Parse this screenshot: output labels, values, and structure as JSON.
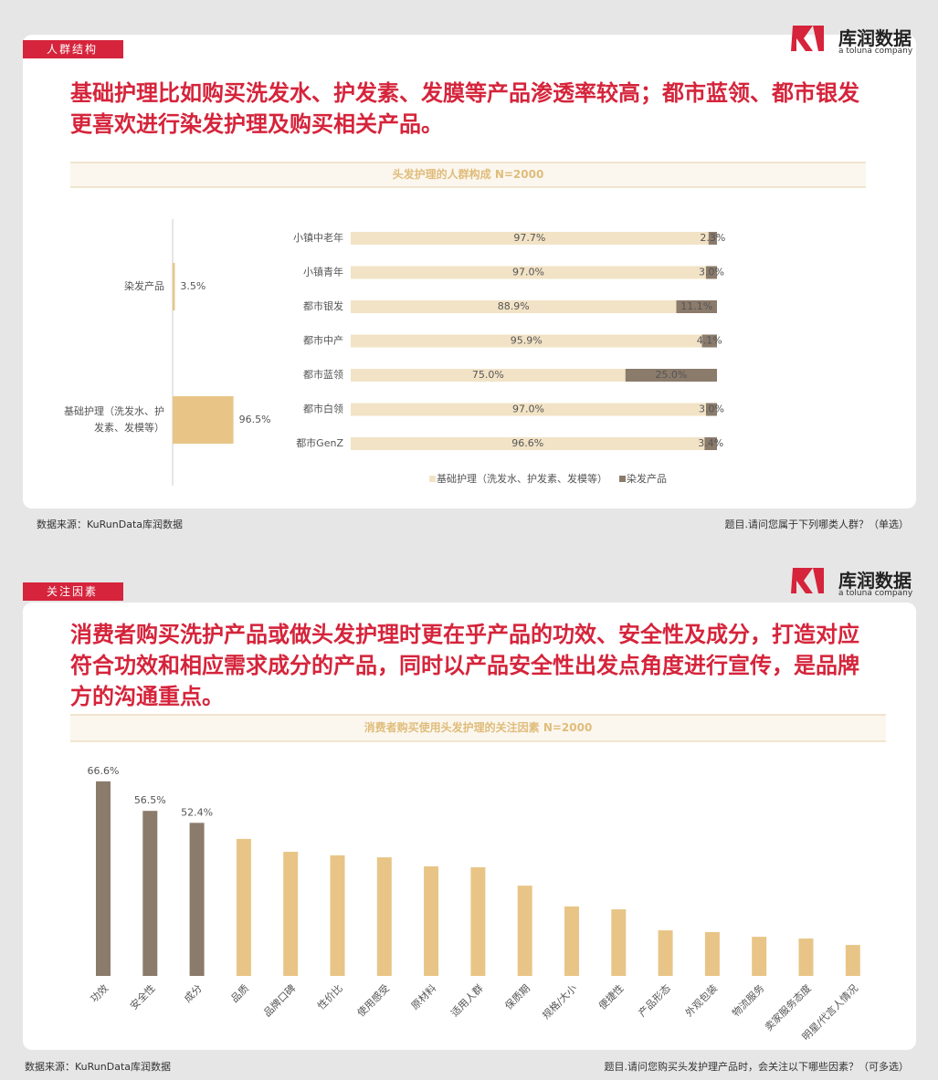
{
  "logo": {
    "name": "库润数据",
    "tagline": "a toluna company"
  },
  "slides": [
    {
      "tag": "人群结构",
      "headline": "基础护理比如购买洗发水、护发素、发膜等产品渗透率较高；都市蓝领、都市银发更喜欢进行染发护理及购买相关产品。",
      "source": "数据来源：KuRunData库润数据",
      "question": "题目.请问您属于下列哪类人群？（单选）"
    },
    {
      "tag": "关注因素",
      "headline": "消费者购买洗护产品或做头发护理时更在乎产品的功效、安全性及成分，打造对应符合功效和相应需求成分的产品，同时以产品安全性出发点角度进行宣传，是品牌方的沟通重点。",
      "source": "数据来源：KuRunData库润数据",
      "question": "题目.请问您购买头发护理产品时，会关注以下哪些因素？（可多选）"
    }
  ],
  "chart_data": [
    {
      "type": "hbar",
      "categories": [
        "染发产品",
        "基础护理（洗发水、护发素、发模等）"
      ],
      "values": [
        3.5,
        96.5
      ],
      "value_labels": [
        "3.5%",
        "96.5%"
      ],
      "color": "#e8c587"
    },
    {
      "type": "stacked_hbar",
      "title": "头发护理的人群构成 N=2000",
      "categories": [
        "小镇中老年",
        "小镇青年",
        "都市银发",
        "都市中产",
        "都市蓝领",
        "都市白领",
        "都市GenZ"
      ],
      "series": [
        {
          "name": "基础护理（洗发水、护发素、发模等）",
          "color": "#f2e3c6",
          "values": [
            97.7,
            97.0,
            88.9,
            95.9,
            75.0,
            97.0,
            96.6
          ],
          "value_labels": [
            "97.7%",
            "97.0%",
            "88.9%",
            "95.9%",
            "75.0%",
            "97.0%",
            "96.6%"
          ]
        },
        {
          "name": "染发产品",
          "color": "#8b7b6b",
          "values": [
            2.3,
            3.0,
            11.1,
            4.1,
            25.0,
            3.0,
            3.4
          ],
          "value_labels": [
            "2.3%",
            "3.0%",
            "11.1%",
            "4.1%",
            "25.0%",
            "3.0%",
            "3.4%"
          ]
        }
      ]
    },
    {
      "type": "bar",
      "title": "消费者购买使用头发护理的关注因素 N=2000",
      "categories": [
        "功效",
        "安全性",
        "成分",
        "品质",
        "品牌口碑",
        "性价比",
        "使用感受",
        "原材料",
        "适用人群",
        "保质期",
        "规格/大小",
        "便捷性",
        "产品形态",
        "外观包装",
        "物流服务",
        "卖家服务态度",
        "明星/代言人情况"
      ],
      "values": [
        66.6,
        56.5,
        52.4,
        46.9,
        42.5,
        41.3,
        40.6,
        37.5,
        37.2,
        30.9,
        23.8,
        22.8,
        15.6,
        15.0,
        13.4,
        12.8,
        10.6
      ],
      "value_labels": [
        "66.6%",
        "56.5%",
        "52.4%",
        null,
        null,
        null,
        null,
        null,
        null,
        null,
        null,
        null,
        null,
        null,
        null,
        null,
        null
      ],
      "colors": [
        "#8b7b6b",
        "#8b7b6b",
        "#8b7b6b",
        "#e8c587",
        "#e8c587",
        "#e8c587",
        "#e8c587",
        "#e8c587",
        "#e8c587",
        "#e8c587",
        "#e8c587",
        "#e8c587",
        "#e8c587",
        "#e8c587",
        "#e8c587",
        "#e8c587",
        "#e8c587"
      ]
    }
  ]
}
